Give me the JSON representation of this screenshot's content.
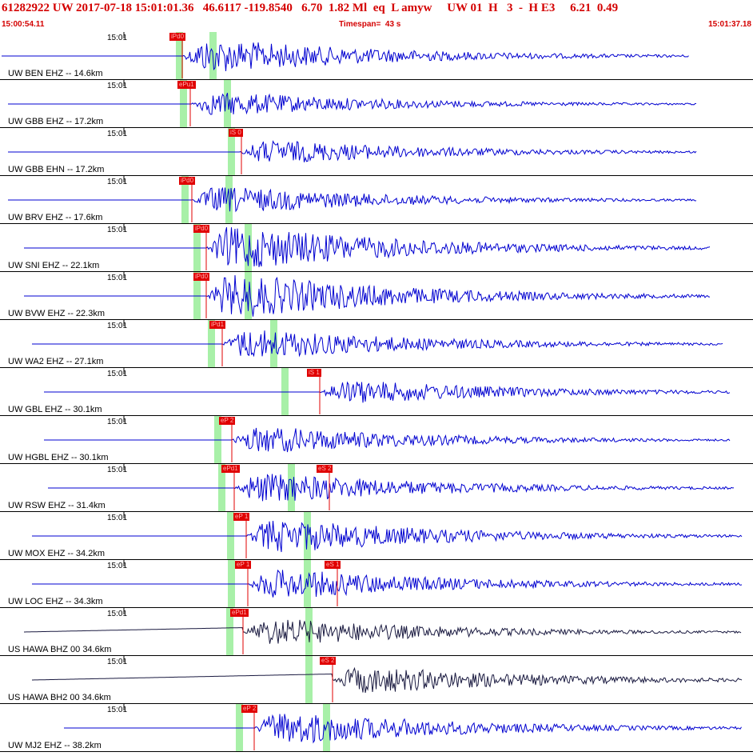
{
  "header": {
    "title": "61282922 UW 2017-07-18 15:01:01.36   46.6117 -119.8540   6.70  1.82 Ml  eq  L amyw     UW 01  H   3  -  H E3     6.21  0.49",
    "start_time": "15:00:54.11",
    "timespan": "Timespan=  43 s",
    "end_time": "15:01:37.18"
  },
  "colors": {
    "header_text": "#d40000",
    "trace_blue": "#0000d0",
    "trace_dark": "#1a1a40",
    "pick_red": "#e00000",
    "window_green": "#a8f0a8"
  },
  "time_tick_label": "15:01",
  "traces": [
    {
      "label": "UW BEN EHZ -- 14.6km",
      "pick": "iPd0",
      "s_pick": "",
      "color": "blue"
    },
    {
      "label": "UW GBB EHZ -- 17.2km",
      "pick": "ePu1",
      "s_pick": "",
      "color": "blue"
    },
    {
      "label": "UW GBB EHN -- 17.2km",
      "pick": "",
      "s_pick": "iS 0",
      "color": "blue"
    },
    {
      "label": "UW BRV EHZ -- 17.6km",
      "pick": "iPd0",
      "s_pick": "",
      "color": "blue"
    },
    {
      "label": "UW SNI EHZ -- 22.1km",
      "pick": "iPd0",
      "s_pick": "",
      "color": "blue"
    },
    {
      "label": "UW BVW EHZ -- 22.3km",
      "pick": "iPd0",
      "s_pick": "",
      "color": "blue"
    },
    {
      "label": "UW WA2 EHZ -- 27.1km",
      "pick": "iPd1",
      "s_pick": "",
      "color": "blue"
    },
    {
      "label": "UW GBL EHZ -- 30.1km",
      "pick": "",
      "s_pick": "iS 1",
      "color": "blue"
    },
    {
      "label": "UW HGBL EHZ -- 30.1km",
      "pick": "eP 2",
      "s_pick": "",
      "color": "blue"
    },
    {
      "label": "UW RSW EHZ -- 31.4km",
      "pick": "ePd1",
      "s_pick": "eS 2",
      "color": "blue"
    },
    {
      "label": "UW MOX EHZ -- 34.2km",
      "pick": "eP 1",
      "s_pick": "",
      "color": "blue"
    },
    {
      "label": "UW LOC EHZ -- 34.3km",
      "pick": "eP 1",
      "s_pick": "eS 1",
      "color": "blue"
    },
    {
      "label": "US HAWA BHZ 00 34.6km",
      "pick": "ePd1",
      "s_pick": "",
      "color": "dark"
    },
    {
      "label": "US HAWA BH2 00 34.6km",
      "pick": "",
      "s_pick": "eS 2",
      "color": "dark"
    },
    {
      "label": "UW MJ2 EHZ -- 38.2km",
      "pick": "eP 2",
      "s_pick": "",
      "color": "blue"
    }
  ]
}
